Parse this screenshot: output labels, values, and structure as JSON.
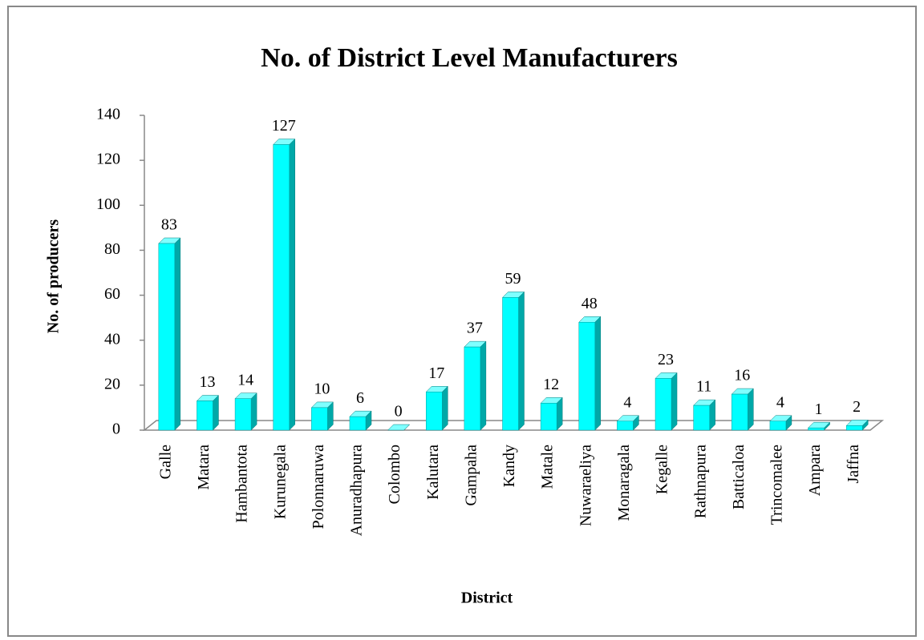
{
  "chart_data": {
    "type": "bar",
    "title": "No. of District Level Manufacturers",
    "xlabel": "District",
    "ylabel": "No. of producers",
    "categories": [
      "Galle",
      "Matara",
      "Hambantota",
      "Kurunegala",
      "Polonnaruwa",
      "Anuradhapura",
      "Colombo",
      "Kalutara",
      "Gampaha",
      "Kandy",
      "Matale",
      "Nuwaraeliya",
      "Monaragala",
      "Kegalle",
      "Rathnapura",
      "Batticaloa",
      "Trincomalee",
      "Ampara",
      "Jaffna"
    ],
    "values": [
      83,
      13,
      14,
      127,
      10,
      6,
      0,
      17,
      37,
      59,
      12,
      48,
      4,
      23,
      11,
      16,
      4,
      1,
      2
    ],
    "color": "#00ffff",
    "ylim": [
      0,
      140
    ],
    "yticks": [
      0,
      20,
      40,
      60,
      80,
      100,
      120,
      140
    ],
    "grid": false
  }
}
